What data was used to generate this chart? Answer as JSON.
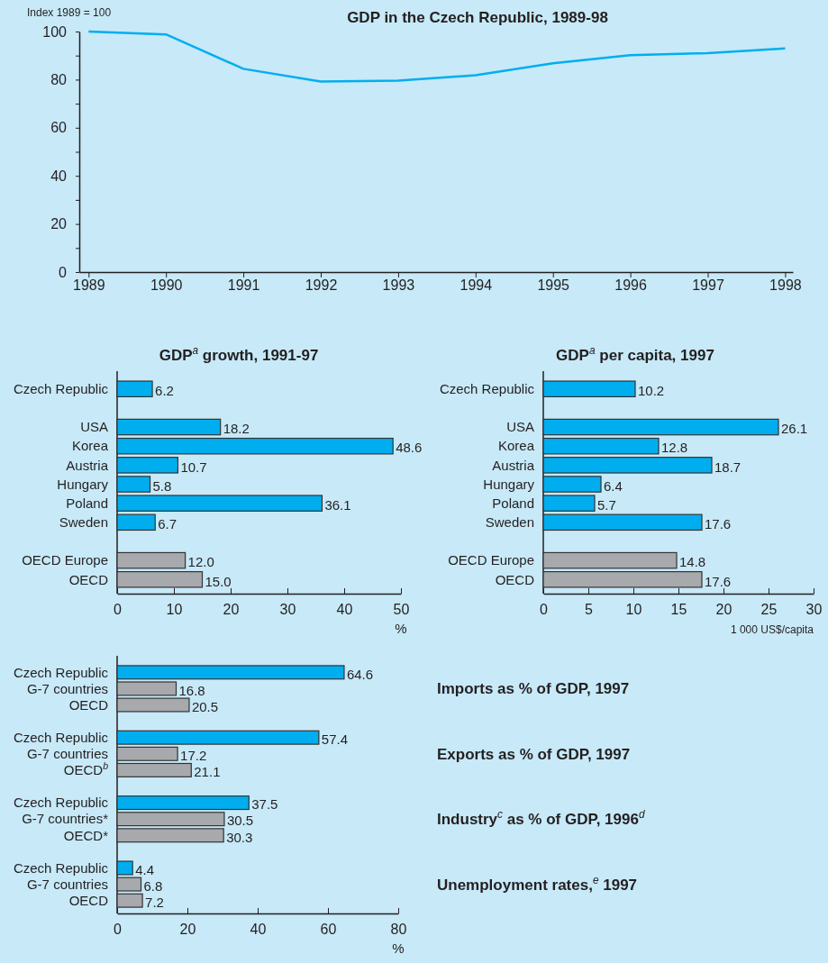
{
  "chart_data": [
    {
      "type": "line",
      "title": "GDP in the Czech Republic, 1989-98",
      "ylabel": "Index 1989 = 100",
      "x": [
        1989,
        1990,
        1991,
        1992,
        1993,
        1994,
        1995,
        1996,
        1997,
        1998
      ],
      "series": [
        {
          "color": "#00aeef",
          "values": [
            100,
            98.8,
            84.5,
            79.2,
            79.6,
            81.8,
            86.8,
            90.2,
            91.0,
            93.0
          ]
        }
      ],
      "xlim": [
        1988.88,
        1998.1
      ],
      "xticks": [
        1989,
        1990,
        1991,
        1992,
        1993,
        1994,
        1995,
        1996,
        1997,
        1998
      ],
      "ylim": [
        0,
        100
      ],
      "yticks": [
        0,
        {
          "value": 10,
          "label": null
        },
        20,
        {
          "value": 30,
          "label": null
        },
        40,
        {
          "value": 50,
          "label": null
        },
        60,
        {
          "value": 70,
          "label": null
        },
        80,
        {
          "value": 90,
          "label": null
        },
        100
      ],
      "marker": "none",
      "line_style": "solid"
    },
    {
      "type": "bar",
      "orientation": "horizontal",
      "title": "GDP$^{a}$ growth, 1991-97",
      "xlabel": "%",
      "categories": [
        "Czech Republic",
        null,
        "USA",
        "Korea",
        "Austria",
        "Hungary",
        "Poland",
        "Sweden",
        null,
        "OECD Europe",
        "OECD"
      ],
      "values": [
        6.2,
        null,
        18.2,
        48.6,
        10.7,
        5.8,
        36.1,
        6.7,
        null,
        12.0,
        15.0
      ],
      "value_labels": [
        "6.2",
        null,
        "18.2",
        "48.6",
        "10.7",
        "5.8",
        "36.1",
        "6.7",
        null,
        "12.0",
        "15.0"
      ],
      "colors": [
        "#00aeef",
        null,
        "#00aeef",
        "#00aeef",
        "#00aeef",
        "#00aeef",
        "#00aeef",
        "#00aeef",
        null,
        "#a7a9ac",
        "#a7a9ac"
      ],
      "xlim": [
        0,
        50
      ],
      "xticks": [
        0,
        10,
        20,
        30,
        40,
        50
      ]
    },
    {
      "type": "bar",
      "orientation": "horizontal",
      "title": "GDP$^{a}$ per capita, 1997",
      "xlabel": "1 000 US$/capita",
      "categories": [
        "Czech Republic",
        null,
        "USA",
        "Korea",
        "Austria",
        "Hungary",
        "Poland",
        "Sweden",
        null,
        "OECD Europe",
        "OECD"
      ],
      "values": [
        10.2,
        null,
        26.1,
        12.8,
        18.7,
        6.4,
        5.7,
        17.6,
        null,
        14.8,
        17.6
      ],
      "value_labels": [
        "10.2",
        null,
        "26.1",
        "12.8",
        "18.7",
        "6.4",
        "5.7",
        "17.6",
        null,
        "14.8",
        "17.6"
      ],
      "colors": [
        "#00aeef",
        null,
        "#00aeef",
        "#00aeef",
        "#00aeef",
        "#00aeef",
        "#00aeef",
        "#00aeef",
        null,
        "#a7a9ac",
        "#a7a9ac"
      ],
      "xlim": [
        0,
        30
      ],
      "xticks": [
        0,
        5,
        10,
        15,
        20,
        25,
        30
      ]
    },
    {
      "type": "bar",
      "orientation": "horizontal",
      "xlabel": "%",
      "categories": [
        "Czech Republic",
        "G-7 countries",
        "OECD",
        null,
        "Czech Republic",
        "G-7 countries",
        "OECD$^{b}$",
        null,
        "Czech Republic",
        "G-7 countries*",
        "OECD*",
        null,
        "Czech Republic",
        "G-7 countries",
        "OECD"
      ],
      "values": [
        64.6,
        16.8,
        20.5,
        null,
        57.4,
        17.2,
        21.1,
        null,
        37.5,
        30.5,
        30.3,
        null,
        4.4,
        6.8,
        7.2
      ],
      "value_labels": [
        "64.6",
        "16.8",
        "20.5",
        null,
        "57.4",
        "17.2",
        "21.1",
        null,
        "37.5",
        "30.5",
        "30.3",
        null,
        "4.4",
        "6.8",
        "7.2"
      ],
      "colors": [
        "#00aeef",
        "#a7a9ac",
        "#a7a9ac",
        null,
        "#00aeef",
        "#a7a9ac",
        "#a7a9ac",
        null,
        "#00aeef",
        "#a7a9ac",
        "#a7a9ac",
        null,
        "#00aeef",
        "#a7a9ac",
        "#a7a9ac"
      ],
      "xlim": [
        0,
        80
      ],
      "xticks": [
        0,
        20,
        40,
        60,
        80
      ],
      "annotations": [
        "Imports as % of GDP, 1997",
        "Exports as % of GDP, 1997",
        "Industry$^{c}$ as % of GDP, 1996$^{d}$",
        "Unemployment rates,$^{e}$ 1997"
      ]
    }
  ]
}
